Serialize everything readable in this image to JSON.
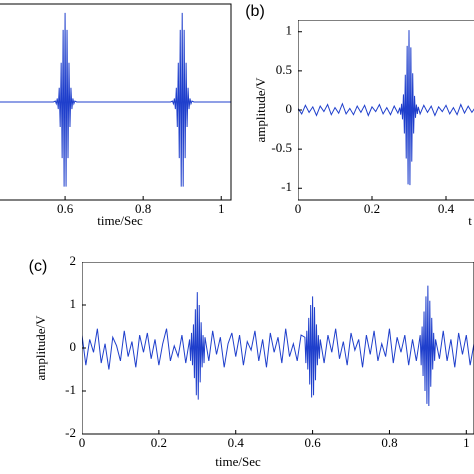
{
  "chart_data": [
    {
      "type": "line",
      "xlabel": "time/Sec",
      "color": "#1f3fcc",
      "xlim": [
        0.4,
        1.025
      ],
      "ylim": [
        -1.1,
        1.1
      ],
      "xticks": [
        0.6,
        0.8,
        1
      ],
      "x": [
        0.43,
        0.5,
        0.55,
        0.57,
        0.575,
        0.5775,
        0.58,
        0.5825,
        0.585,
        0.5875,
        0.59,
        0.5925,
        0.595,
        0.5975,
        0.6,
        0.6025,
        0.605,
        0.6075,
        0.61,
        0.6125,
        0.615,
        0.6175,
        0.62,
        0.6225,
        0.625,
        0.63,
        0.7,
        0.8,
        0.85,
        0.87,
        0.875,
        0.8775,
        0.88,
        0.8825,
        0.885,
        0.8875,
        0.89,
        0.8925,
        0.895,
        0.8975,
        0.9,
        0.9025,
        0.905,
        0.9075,
        0.91,
        0.9125,
        0.915,
        0.9175,
        0.92,
        0.9225,
        0.925,
        0.93,
        0.95,
        1,
        1.025
      ],
      "values": [
        0,
        0,
        0,
        0,
        0.01,
        -0.02,
        0.04,
        -0.08,
        0.16,
        -0.28,
        0.44,
        -0.63,
        0.81,
        -0.95,
        1,
        -0.95,
        0.81,
        -0.63,
        0.44,
        -0.28,
        0.16,
        -0.08,
        0.04,
        -0.02,
        0.01,
        0,
        0,
        0,
        0,
        0,
        0.01,
        -0.02,
        0.04,
        -0.08,
        0.16,
        -0.28,
        0.44,
        -0.63,
        0.81,
        -0.95,
        1,
        -0.95,
        0.81,
        -0.63,
        0.44,
        -0.28,
        0.16,
        -0.08,
        0.04,
        -0.02,
        0.01,
        0,
        0,
        0,
        0
      ]
    },
    {
      "type": "line",
      "panel_label": "(b)",
      "xlabel": "t",
      "ylabel": "amplitude/V",
      "color": "#1f3fcc",
      "xlim": [
        0,
        1
      ],
      "ylim": [
        -1.15,
        1.15
      ],
      "xticks": [
        0,
        0.2,
        0.4
      ],
      "yticks": [
        -1,
        -0.5,
        0,
        0.5,
        1
      ],
      "x": [
        0,
        0.01,
        0.02,
        0.03,
        0.04,
        0.05,
        0.06,
        0.07,
        0.08,
        0.09,
        0.1,
        0.11,
        0.12,
        0.13,
        0.14,
        0.15,
        0.16,
        0.17,
        0.18,
        0.19,
        0.2,
        0.21,
        0.22,
        0.23,
        0.24,
        0.25,
        0.26,
        0.27,
        0.275,
        0.2775,
        0.28,
        0.2825,
        0.285,
        0.2875,
        0.29,
        0.2925,
        0.295,
        0.2975,
        0.3,
        0.3025,
        0.305,
        0.3075,
        0.31,
        0.3125,
        0.315,
        0.3175,
        0.32,
        0.3225,
        0.325,
        0.33,
        0.34,
        0.35,
        0.36,
        0.37,
        0.38,
        0.39,
        0.4,
        0.41,
        0.42,
        0.43,
        0.44,
        0.45,
        0.46,
        0.47,
        0.48
      ],
      "values": [
        0.02,
        -0.05,
        0.06,
        -0.03,
        0.04,
        -0.07,
        0.05,
        -0.02,
        0.07,
        -0.06,
        0.03,
        -0.04,
        0.08,
        -0.05,
        0.02,
        -0.06,
        0.05,
        -0.03,
        0.06,
        -0.07,
        0.04,
        -0.02,
        0.07,
        -0.05,
        0.03,
        -0.06,
        0.05,
        -0.04,
        0.03,
        -0.06,
        0.08,
        -0.12,
        0.2,
        -0.3,
        0.45,
        -0.62,
        0.82,
        -0.95,
        1.02,
        -0.96,
        0.8,
        -0.66,
        0.47,
        -0.3,
        0.18,
        -0.1,
        0.07,
        -0.05,
        0.04,
        -0.05,
        0.06,
        -0.03,
        0.05,
        -0.07,
        0.04,
        -0.02,
        0.06,
        -0.05,
        0.03,
        -0.06,
        0.07,
        -0.04,
        0.05,
        -0.03,
        0.04
      ]
    },
    {
      "type": "line",
      "panel_label": "(c)",
      "xlabel": "time/Sec",
      "ylabel": "amplitude/V",
      "color": "#1f3fcc",
      "xlim": [
        0,
        1.02
      ],
      "ylim": [
        -2,
        2
      ],
      "xticks": [
        0,
        0.2,
        0.4,
        0.6,
        0.8,
        1
      ],
      "yticks": [
        -2,
        -1,
        0,
        1,
        2
      ],
      "x": [
        0,
        0.01,
        0.02,
        0.03,
        0.04,
        0.05,
        0.06,
        0.07,
        0.08,
        0.09,
        0.1,
        0.11,
        0.12,
        0.13,
        0.14,
        0.15,
        0.16,
        0.17,
        0.18,
        0.19,
        0.2,
        0.21,
        0.22,
        0.23,
        0.24,
        0.25,
        0.26,
        0.27,
        0.28,
        0.2825,
        0.285,
        0.2875,
        0.29,
        0.2925,
        0.295,
        0.2975,
        0.3,
        0.3025,
        0.305,
        0.3075,
        0.31,
        0.3125,
        0.315,
        0.3175,
        0.32,
        0.33,
        0.34,
        0.35,
        0.36,
        0.37,
        0.38,
        0.39,
        0.4,
        0.41,
        0.42,
        0.43,
        0.44,
        0.45,
        0.46,
        0.47,
        0.48,
        0.49,
        0.5,
        0.51,
        0.52,
        0.53,
        0.54,
        0.55,
        0.56,
        0.57,
        0.58,
        0.5825,
        0.585,
        0.5875,
        0.59,
        0.5925,
        0.595,
        0.5975,
        0.6,
        0.6025,
        0.605,
        0.6075,
        0.61,
        0.6125,
        0.615,
        0.6175,
        0.62,
        0.63,
        0.64,
        0.65,
        0.66,
        0.67,
        0.68,
        0.69,
        0.7,
        0.71,
        0.72,
        0.73,
        0.74,
        0.75,
        0.76,
        0.77,
        0.78,
        0.79,
        0.8,
        0.81,
        0.82,
        0.83,
        0.84,
        0.85,
        0.86,
        0.87,
        0.88,
        0.8825,
        0.885,
        0.8875,
        0.89,
        0.8925,
        0.895,
        0.8975,
        0.9,
        0.9025,
        0.905,
        0.9075,
        0.91,
        0.9125,
        0.915,
        0.9175,
        0.92,
        0.93,
        0.94,
        0.95,
        0.96,
        0.97,
        0.98,
        0.99,
        1,
        1.01,
        1.02
      ],
      "values": [
        0.3,
        -0.4,
        0.2,
        -0.1,
        0.45,
        -0.35,
        0.1,
        -0.5,
        0.25,
        0.05,
        -0.3,
        0.4,
        -0.2,
        0.15,
        -0.45,
        0.3,
        -0.1,
        0.35,
        -0.25,
        0.2,
        -0.4,
        0.1,
        0.45,
        -0.3,
        0.05,
        -0.2,
        0.3,
        -0.35,
        0.2,
        -0.3,
        0.35,
        -0.4,
        0.55,
        -0.7,
        0.9,
        -1.1,
        1.3,
        -1.2,
        1.0,
        -0.8,
        0.6,
        -0.45,
        0.3,
        -0.35,
        0.25,
        -0.3,
        0.4,
        -0.15,
        0.25,
        -0.45,
        0.1,
        0.35,
        -0.2,
        0.3,
        -0.4,
        0.15,
        -0.05,
        0.4,
        -0.3,
        0.2,
        -0.45,
        0.35,
        -0.1,
        0.25,
        -0.35,
        0.45,
        -0.2,
        0.1,
        -0.3,
        0.3,
        0.25,
        -0.35,
        0.4,
        -0.5,
        0.7,
        -0.85,
        1.0,
        -1.15,
        1.2,
        -1.1,
        0.95,
        -0.75,
        0.55,
        -0.4,
        0.3,
        -0.25,
        0.2,
        -0.35,
        0.3,
        -0.1,
        0.45,
        -0.25,
        0.15,
        -0.4,
        0.35,
        -0.05,
        0.2,
        -0.45,
        0.3,
        -0.15,
        0.4,
        -0.3,
        0.1,
        -0.2,
        0.45,
        -0.35,
        0.25,
        -0.1,
        0.3,
        -0.4,
        0.2,
        -0.3,
        0.3,
        -0.4,
        0.5,
        -0.65,
        0.85,
        -1.0,
        1.2,
        -1.3,
        1.45,
        -1.35,
        1.1,
        -0.9,
        0.7,
        -0.5,
        0.35,
        -0.3,
        0.2,
        -0.25,
        0.4,
        -0.3,
        0.2,
        -0.45,
        0.35,
        -0.15,
        0.3,
        -0.4,
        0.1
      ]
    }
  ]
}
